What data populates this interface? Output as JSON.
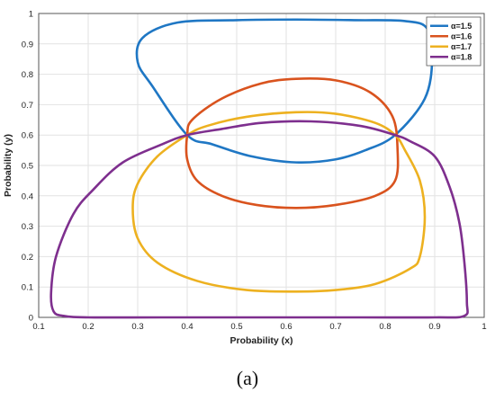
{
  "chart_data": {
    "type": "line",
    "xlabel": "Probability (x)",
    "ylabel": "Probability (y)",
    "xlim": [
      0.1,
      1.0
    ],
    "ylim": [
      0,
      1
    ],
    "xticks": [
      "0.1",
      "0.2",
      "0.3",
      "0.4",
      "0.5",
      "0.6",
      "0.7",
      "0.8",
      "0.9",
      "1"
    ],
    "yticks": [
      "0",
      "0.1",
      "0.2",
      "0.3",
      "0.4",
      "0.5",
      "0.6",
      "0.7",
      "0.8",
      "0.9",
      "1"
    ],
    "grid": true,
    "legend_position": "top-right",
    "series": [
      {
        "name": "α=1.5",
        "color": "#1f77c4",
        "x": [
          0.4,
          0.33,
          0.3,
          0.31,
          0.38,
          0.5,
          0.62,
          0.74,
          0.84,
          0.885,
          0.895,
          0.88,
          0.82,
          0.76,
          0.7,
          0.62,
          0.53,
          0.45,
          0.4
        ],
        "y": [
          0.6,
          0.76,
          0.84,
          0.92,
          0.97,
          0.978,
          0.98,
          0.978,
          0.975,
          0.95,
          0.85,
          0.72,
          0.6,
          0.55,
          0.52,
          0.51,
          0.53,
          0.57,
          0.6
        ]
      },
      {
        "name": "α=1.6",
        "color": "#d9531e",
        "x": [
          0.4,
          0.41,
          0.47,
          0.55,
          0.62,
          0.7,
          0.77,
          0.815,
          0.825,
          0.82,
          0.78,
          0.7,
          0.62,
          0.54,
          0.47,
          0.42,
          0.4,
          0.4
        ],
        "y": [
          0.6,
          0.65,
          0.72,
          0.77,
          0.785,
          0.78,
          0.74,
          0.66,
          0.55,
          0.45,
          0.4,
          0.37,
          0.36,
          0.37,
          0.4,
          0.45,
          0.52,
          0.6
        ]
      },
      {
        "name": "α=1.7",
        "color": "#edb120",
        "x": [
          0.4,
          0.44,
          0.52,
          0.62,
          0.7,
          0.78,
          0.82,
          0.84,
          0.87,
          0.88,
          0.87,
          0.85,
          0.78,
          0.7,
          0.62,
          0.52,
          0.42,
          0.34,
          0.3,
          0.29,
          0.3,
          0.34,
          0.4
        ],
        "y": [
          0.6,
          0.63,
          0.66,
          0.675,
          0.67,
          0.64,
          0.6,
          0.55,
          0.45,
          0.33,
          0.2,
          0.16,
          0.11,
          0.09,
          0.085,
          0.09,
          0.12,
          0.18,
          0.26,
          0.36,
          0.44,
          0.53,
          0.6
        ]
      },
      {
        "name": "α=1.8",
        "color": "#7e2f8e",
        "x": [
          0.4,
          0.35,
          0.27,
          0.21,
          0.17,
          0.135,
          0.125,
          0.13,
          0.15,
          0.2,
          0.35,
          0.55,
          0.75,
          0.9,
          0.96,
          0.965,
          0.96,
          0.95,
          0.93,
          0.9,
          0.85,
          0.82,
          0.75,
          0.65,
          0.55,
          0.47,
          0.4
        ],
        "y": [
          0.6,
          0.57,
          0.51,
          0.42,
          0.34,
          0.2,
          0.08,
          0.02,
          0.005,
          0.0,
          0.0,
          0.0,
          0.0,
          0.0,
          0.005,
          0.05,
          0.18,
          0.31,
          0.43,
          0.53,
          0.58,
          0.6,
          0.63,
          0.645,
          0.64,
          0.62,
          0.6
        ]
      }
    ]
  },
  "panel_label": "(a)"
}
